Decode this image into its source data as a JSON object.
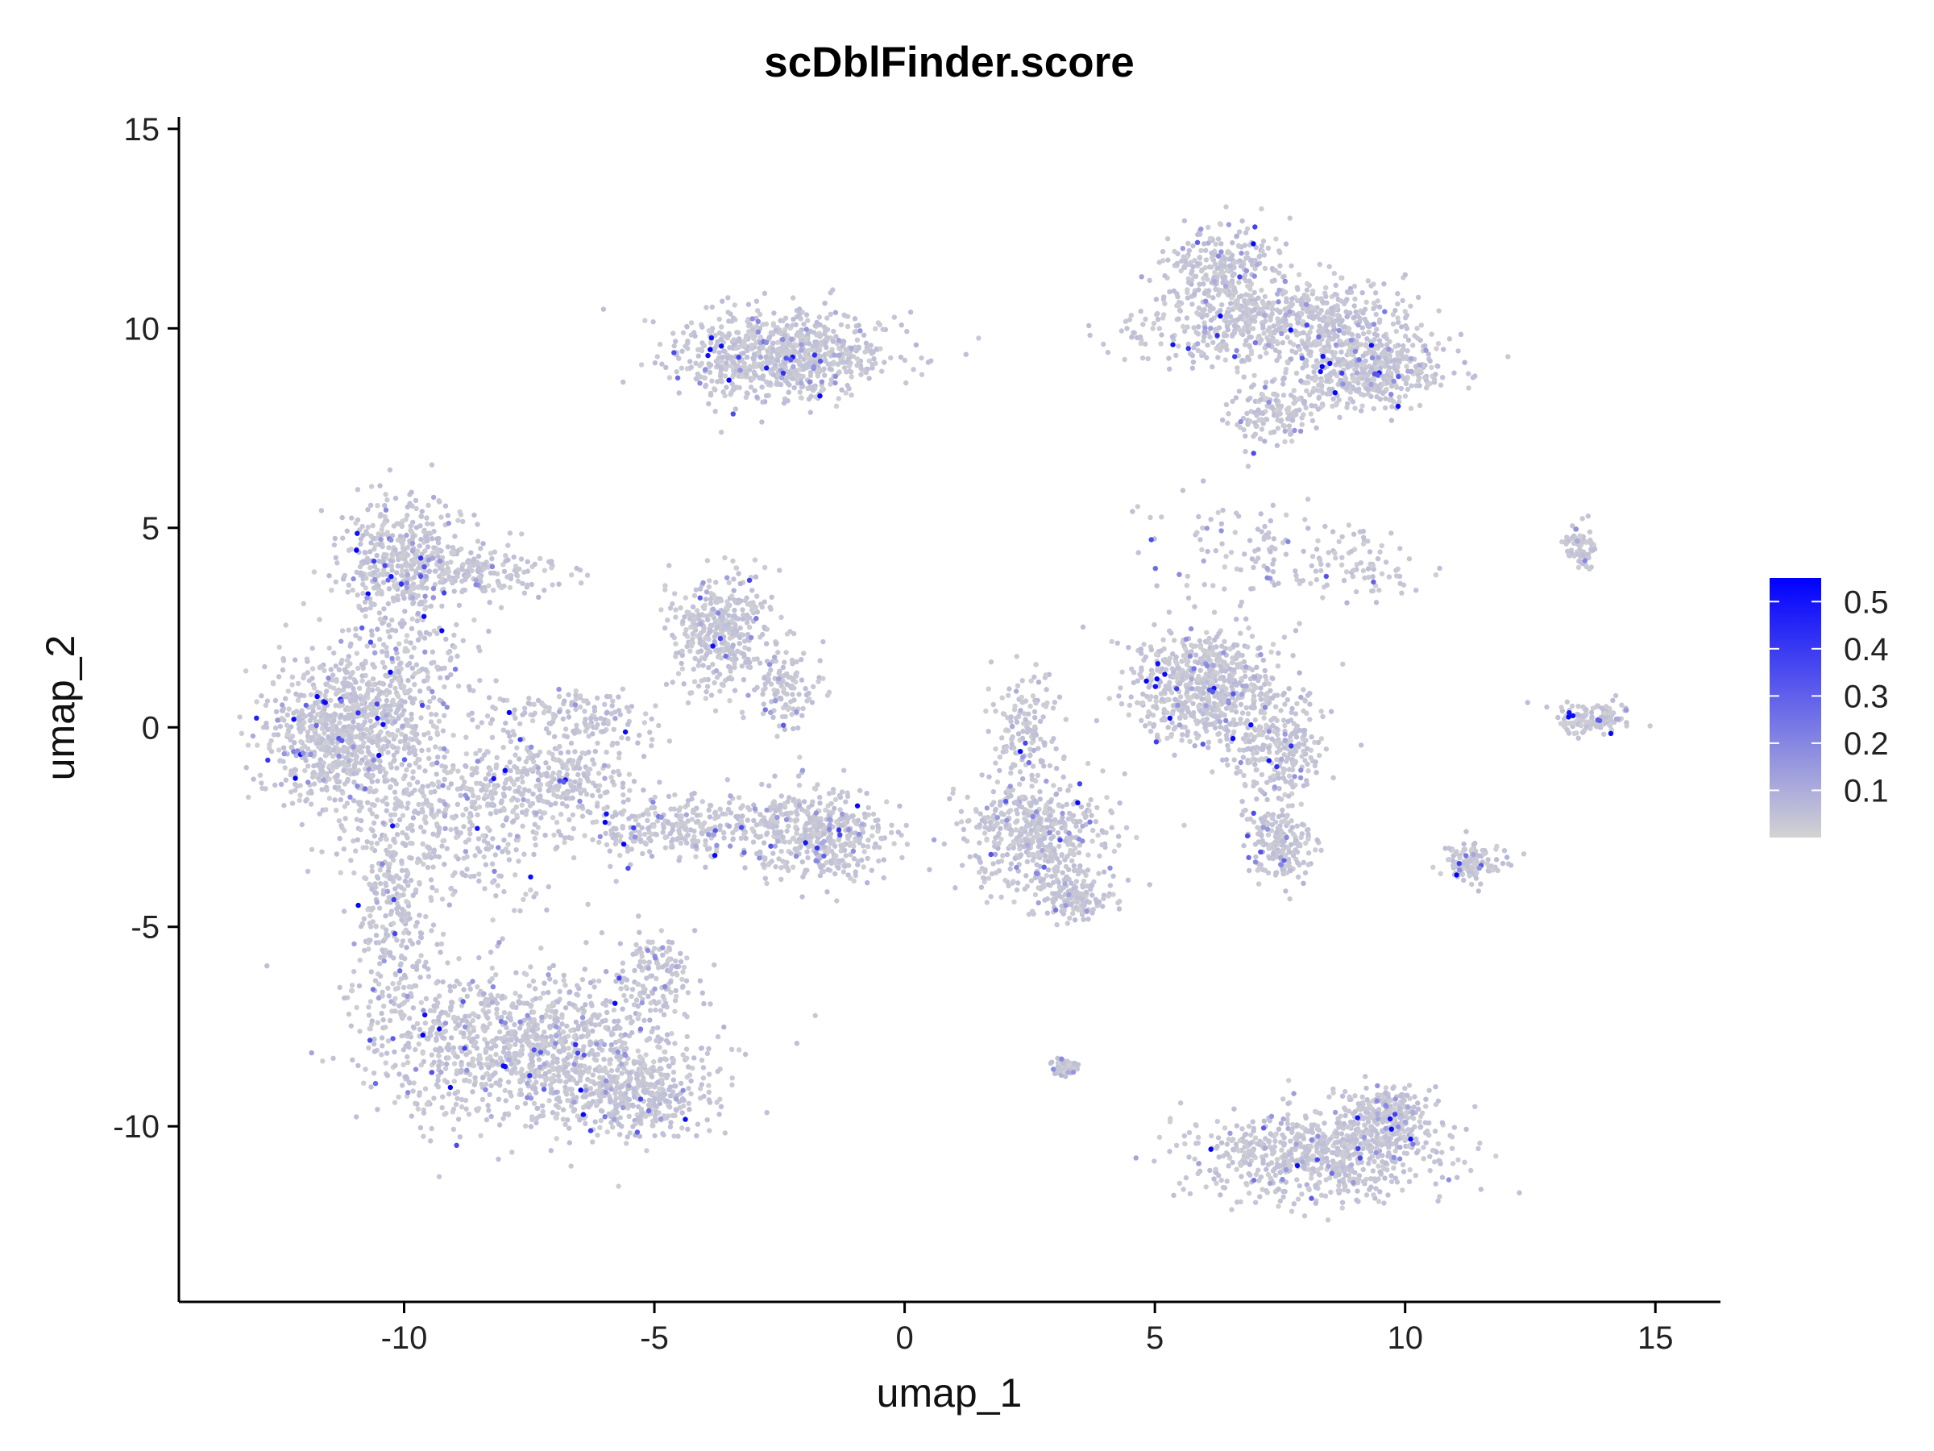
{
  "chart_data": {
    "type": "scatter",
    "title": "scDblFinder.score",
    "xlabel": "umap_1",
    "ylabel": "umap_2",
    "xlim": [
      -14.5,
      16.3
    ],
    "ylim": [
      -14.4,
      15.3
    ],
    "x_ticks": [
      -10,
      -5,
      0,
      5,
      10,
      15
    ],
    "x_tick_labels": [
      "-10",
      "-5",
      "0",
      "5",
      "10",
      "15"
    ],
    "y_ticks": [
      -10,
      -5,
      0,
      5,
      10,
      15
    ],
    "y_tick_labels": [
      "-10",
      "-5",
      "0",
      "5",
      "10",
      "15"
    ],
    "grid": false,
    "legend": {
      "placement": "right",
      "type": "colorbar",
      "min": 0.0,
      "max": 0.55,
      "ticks": [
        0.1,
        0.2,
        0.3,
        0.4,
        0.5
      ],
      "tick_labels": [
        "0.1",
        "0.2",
        "0.3",
        "0.4",
        "0.5"
      ],
      "color_low": "#d3d3d3",
      "color_high": "#0000ff"
    },
    "clusters": [
      {
        "x": -11.4,
        "y": -0.2,
        "sx": 0.9,
        "sy": 1.1,
        "n": 700
      },
      {
        "x": -10.1,
        "y": 4.2,
        "sx": 0.8,
        "sy": 1.0,
        "n": 400
      },
      {
        "x": -8.6,
        "y": 4.0,
        "sx": 1.1,
        "sy": 0.4,
        "n": 180
      },
      {
        "x": -10.2,
        "y": 0.8,
        "sx": 1.0,
        "sy": 1.8,
        "n": 400
      },
      {
        "x": -10.2,
        "y": -4.8,
        "sx": 0.55,
        "sy": 1.9,
        "n": 300
      },
      {
        "x": -8.8,
        "y": -2.5,
        "sx": 1.3,
        "sy": 1.2,
        "n": 350
      },
      {
        "x": -7.6,
        "y": -8.0,
        "sx": 1.9,
        "sy": 1.2,
        "n": 1100
      },
      {
        "x": -5.3,
        "y": -9.2,
        "sx": 0.9,
        "sy": 0.6,
        "n": 350
      },
      {
        "x": -5.0,
        "y": -6.2,
        "sx": 0.4,
        "sy": 0.7,
        "n": 120
      },
      {
        "x": -7.0,
        "y": -1.3,
        "sx": 1.1,
        "sy": 0.6,
        "n": 250
      },
      {
        "x": -4.6,
        "y": -2.5,
        "sx": 1.3,
        "sy": 0.5,
        "n": 300
      },
      {
        "x": -1.8,
        "y": -2.6,
        "sx": 0.9,
        "sy": 0.7,
        "n": 450
      },
      {
        "x": -3.7,
        "y": 2.4,
        "sx": 0.6,
        "sy": 0.9,
        "n": 380
      },
      {
        "x": -2.4,
        "y": 1.0,
        "sx": 0.5,
        "sy": 0.6,
        "n": 120
      },
      {
        "x": -6.6,
        "y": 0.3,
        "sx": 1.0,
        "sy": 0.4,
        "n": 150
      },
      {
        "x": -2.5,
        "y": 9.3,
        "sx": 1.3,
        "sy": 0.7,
        "n": 800
      },
      {
        "x": 2.6,
        "y": -2.7,
        "sx": 0.9,
        "sy": 0.9,
        "n": 500
      },
      {
        "x": 2.4,
        "y": -0.2,
        "sx": 0.4,
        "sy": 1.0,
        "n": 150
      },
      {
        "x": 3.4,
        "y": -4.3,
        "sx": 0.5,
        "sy": 0.3,
        "n": 120
      },
      {
        "x": 6.0,
        "y": 1.0,
        "sx": 0.9,
        "sy": 0.9,
        "n": 650
      },
      {
        "x": 7.4,
        "y": -0.5,
        "sx": 0.6,
        "sy": 0.8,
        "n": 250
      },
      {
        "x": 7.5,
        "y": -2.8,
        "sx": 0.4,
        "sy": 0.6,
        "n": 200
      },
      {
        "x": 6.3,
        "y": 11.4,
        "sx": 0.7,
        "sy": 0.8,
        "n": 300
      },
      {
        "x": 8.0,
        "y": 10.2,
        "sx": 1.3,
        "sy": 0.6,
        "n": 500
      },
      {
        "x": 9.3,
        "y": 8.9,
        "sx": 0.9,
        "sy": 0.6,
        "n": 450
      },
      {
        "x": 7.4,
        "y": 7.9,
        "sx": 0.6,
        "sy": 0.5,
        "n": 150
      },
      {
        "x": 5.6,
        "y": 9.8,
        "sx": 1.2,
        "sy": 0.5,
        "n": 120
      },
      {
        "x": 7.2,
        "y": 4.6,
        "sx": 1.4,
        "sy": 0.8,
        "n": 120
      },
      {
        "x": 9.2,
        "y": 4.0,
        "sx": 0.8,
        "sy": 0.4,
        "n": 60
      },
      {
        "x": 8.2,
        "y": -10.7,
        "sx": 1.6,
        "sy": 0.7,
        "n": 700
      },
      {
        "x": 9.6,
        "y": -9.8,
        "sx": 0.5,
        "sy": 0.5,
        "n": 250
      },
      {
        "x": 13.5,
        "y": 4.5,
        "sx": 0.2,
        "sy": 0.35,
        "n": 80
      },
      {
        "x": 13.8,
        "y": 0.2,
        "sx": 0.5,
        "sy": 0.25,
        "n": 140
      },
      {
        "x": 11.3,
        "y": -3.4,
        "sx": 0.35,
        "sy": 0.35,
        "n": 120
      },
      {
        "x": 3.2,
        "y": -8.5,
        "sx": 0.2,
        "sy": 0.15,
        "n": 50
      }
    ]
  }
}
